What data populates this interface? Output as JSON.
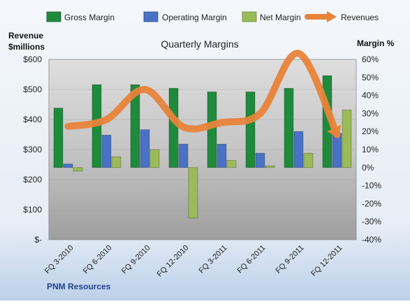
{
  "chart_data": {
    "type": "bar",
    "title": "Quarterly Margins",
    "left_axis_label": [
      "Revenue",
      "$millions"
    ],
    "right_axis_label": "Margin %",
    "footer": "PNM Resources",
    "categories": [
      "FQ 3-2010",
      "FQ 6-2010",
      "FQ 9-2010",
      "FQ 12-2010",
      "FQ 3-2011",
      "FQ 6-2011",
      "FQ 9-2011",
      "FQ 12-2011"
    ],
    "left_axis": {
      "min": 0,
      "max": 600,
      "step": 100,
      "tick_labels": [
        "$-",
        "$100",
        "$200",
        "$300",
        "$400",
        "$500",
        "$600"
      ]
    },
    "right_axis": {
      "min": -40,
      "max": 60,
      "step": 10,
      "tick_labels": [
        "-40%",
        "-30%",
        "-20%",
        "-10%",
        "0%",
        "10%",
        "20%",
        "30%",
        "40%",
        "50%",
        "60%"
      ]
    },
    "series": [
      {
        "name": "Gross Margin",
        "axis": "right",
        "kind": "bar",
        "color": "#1f8a3c",
        "values": [
          33,
          46,
          46,
          44,
          42,
          42,
          44,
          51
        ]
      },
      {
        "name": "Operating Margin",
        "axis": "right",
        "kind": "bar",
        "color": "#4a72c4",
        "values": [
          2,
          18,
          21,
          13,
          13,
          8,
          20,
          19
        ]
      },
      {
        "name": "Net Margin",
        "axis": "right",
        "kind": "bar",
        "color": "#9bbb59",
        "values": [
          -2,
          6,
          10,
          -28,
          4,
          1,
          8,
          32
        ]
      },
      {
        "name": "Revenues",
        "axis": "left",
        "kind": "line",
        "color": "#e8833a",
        "values": [
          377,
          400,
          500,
          375,
          390,
          420,
          620,
          350
        ]
      }
    ],
    "legend": {
      "position": "top"
    },
    "grid": true
  }
}
